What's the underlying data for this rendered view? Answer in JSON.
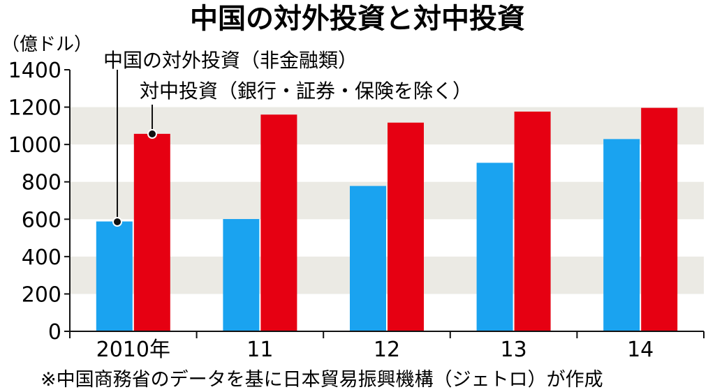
{
  "chart_data": {
    "type": "bar",
    "title": "中国の対外投資と対中投資",
    "unit_label": "（億ドル）",
    "categories": [
      "2010年",
      "11",
      "12",
      "13",
      "14"
    ],
    "series": [
      {
        "name": "中国の対外投資（非金融類）",
        "color": "#1aa3f0",
        "values": [
          588,
          601,
          778,
          902,
          1029
        ]
      },
      {
        "name": "対中投資（銀行・証券・保険を除く）",
        "color": "#e60012",
        "values": [
          1057,
          1160,
          1117,
          1176,
          1196
        ]
      }
    ],
    "ylim": [
      0,
      1400
    ],
    "yticks": [
      0,
      200,
      400,
      600,
      800,
      1000,
      1200,
      1400
    ],
    "grid": "alternating bands",
    "note": "※中国商務省のデータを基に日本貿易振興機構（ジェトロ）が作成"
  }
}
